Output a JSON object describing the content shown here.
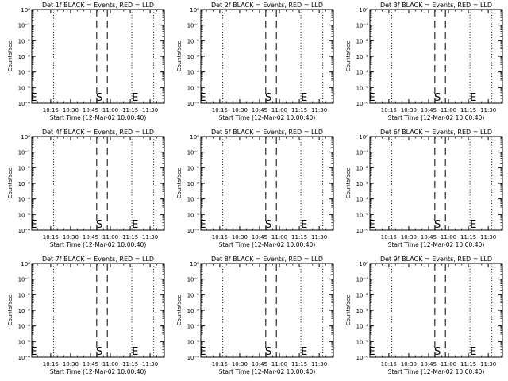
{
  "chart_data": {
    "type": "line",
    "title_format": "Det {n}f BLACK = Events, RED = LLD",
    "ylabel": "Counts/sec",
    "xlabel": "Start Time (12-Mar-02 10:00:40)",
    "ylog": true,
    "yticks": [
      {
        "exp": 0,
        "label": "10⁰"
      },
      {
        "exp": -1,
        "label": "10⁻¹"
      },
      {
        "exp": -2,
        "label": "10⁻²"
      },
      {
        "exp": -3,
        "label": "10⁻³"
      },
      {
        "exp": -4,
        "label": "10⁻⁴"
      },
      {
        "exp": -5,
        "label": "10⁻⁵"
      },
      {
        "exp": -6,
        "label": "10⁻⁶"
      }
    ],
    "xlim_minutes": [
      0,
      100
    ],
    "xticks": [
      {
        "t": 14.3,
        "label": "10:15"
      },
      {
        "t": 29.3,
        "label": "10:30"
      },
      {
        "t": 44.3,
        "label": "10:45"
      },
      {
        "t": 59.3,
        "label": "11:00"
      },
      {
        "t": 74.3,
        "label": "11:15"
      },
      {
        "t": 89.3,
        "label": "11:30"
      }
    ],
    "dotted_lines_minutes": [
      16.5,
      75.5,
      92
    ],
    "dashed_lines_minutes": [
      49,
      57
    ],
    "markers": [
      {
        "text": "E",
        "t": 1.5
      },
      {
        "text": "S",
        "t": 51
      },
      {
        "text": "E",
        "t": 78
      }
    ],
    "panels": [
      {
        "title": "Det 1f BLACK = Events, RED = LLD"
      },
      {
        "title": "Det 2f BLACK = Events, RED = LLD"
      },
      {
        "title": "Det 3f BLACK = Events, RED = LLD"
      },
      {
        "title": "Det 4f BLACK = Events, RED = LLD"
      },
      {
        "title": "Det 5f BLACK = Events, RED = LLD"
      },
      {
        "title": "Det 6f BLACK = Events, RED = LLD"
      },
      {
        "title": "Det 7f BLACK = Events, RED = LLD"
      },
      {
        "title": "Det 8f BLACK = Events, RED = LLD"
      },
      {
        "title": "Det 9f BLACK = Events, RED = LLD"
      }
    ],
    "series": []
  }
}
